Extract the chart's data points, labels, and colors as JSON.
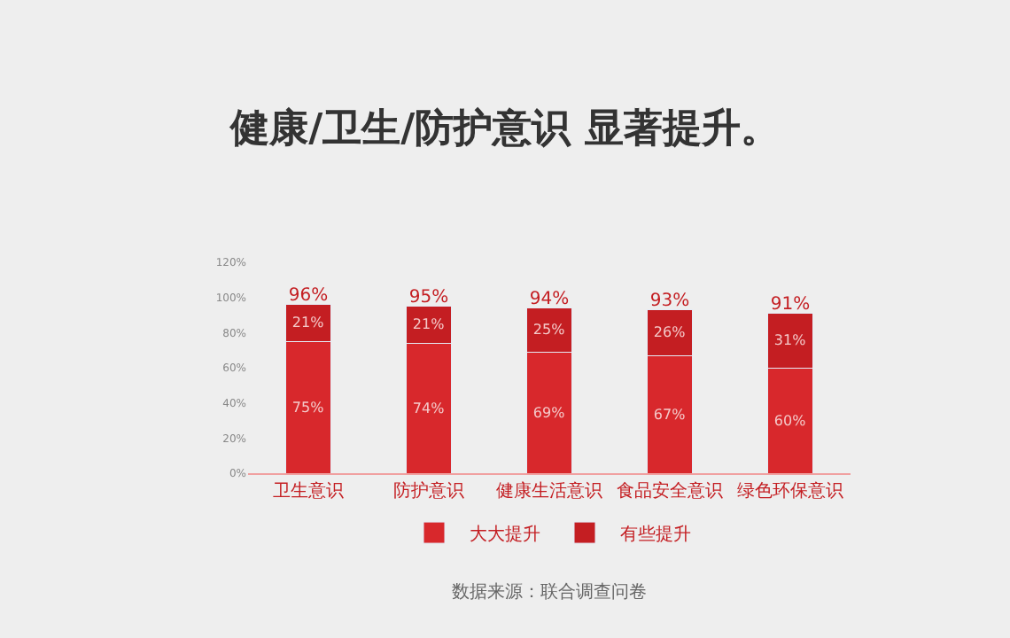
{
  "chart_data": {
    "type": "bar",
    "title": "健康/卫生/防护意识 显著提升。",
    "stacked": true,
    "categories": [
      "卫生意识",
      "防护意识",
      "健康生活意识",
      "食品安全意识",
      "绿色环保意识"
    ],
    "series": [
      {
        "name": "大大提升",
        "color": "#d8282c",
        "values": [
          75,
          74,
          69,
          67,
          60
        ],
        "value_labels": [
          "75%",
          "74%",
          "69%",
          "67%",
          "60%"
        ]
      },
      {
        "name": "有些提升",
        "color": "#c41e22",
        "values": [
          21,
          21,
          25,
          26,
          31
        ],
        "value_labels": [
          "21%",
          "21%",
          "25%",
          "26%",
          "31%"
        ]
      }
    ],
    "totals": [
      "96%",
      "95%",
      "94%",
      "93%",
      "91%"
    ],
    "ylim": [
      0,
      120
    ],
    "yticks": [
      {
        "value": 0,
        "label": "0%"
      },
      {
        "value": 20,
        "label": "20%"
      },
      {
        "value": 40,
        "label": "40%"
      },
      {
        "value": 60,
        "label": "60%"
      },
      {
        "value": 80,
        "label": "80%"
      },
      {
        "value": 100,
        "label": "100%"
      },
      {
        "value": 120,
        "label": "120%"
      }
    ],
    "grid": false,
    "legend": "bottom",
    "annotations": [
      "数据来源：联合调查问卷"
    ]
  }
}
